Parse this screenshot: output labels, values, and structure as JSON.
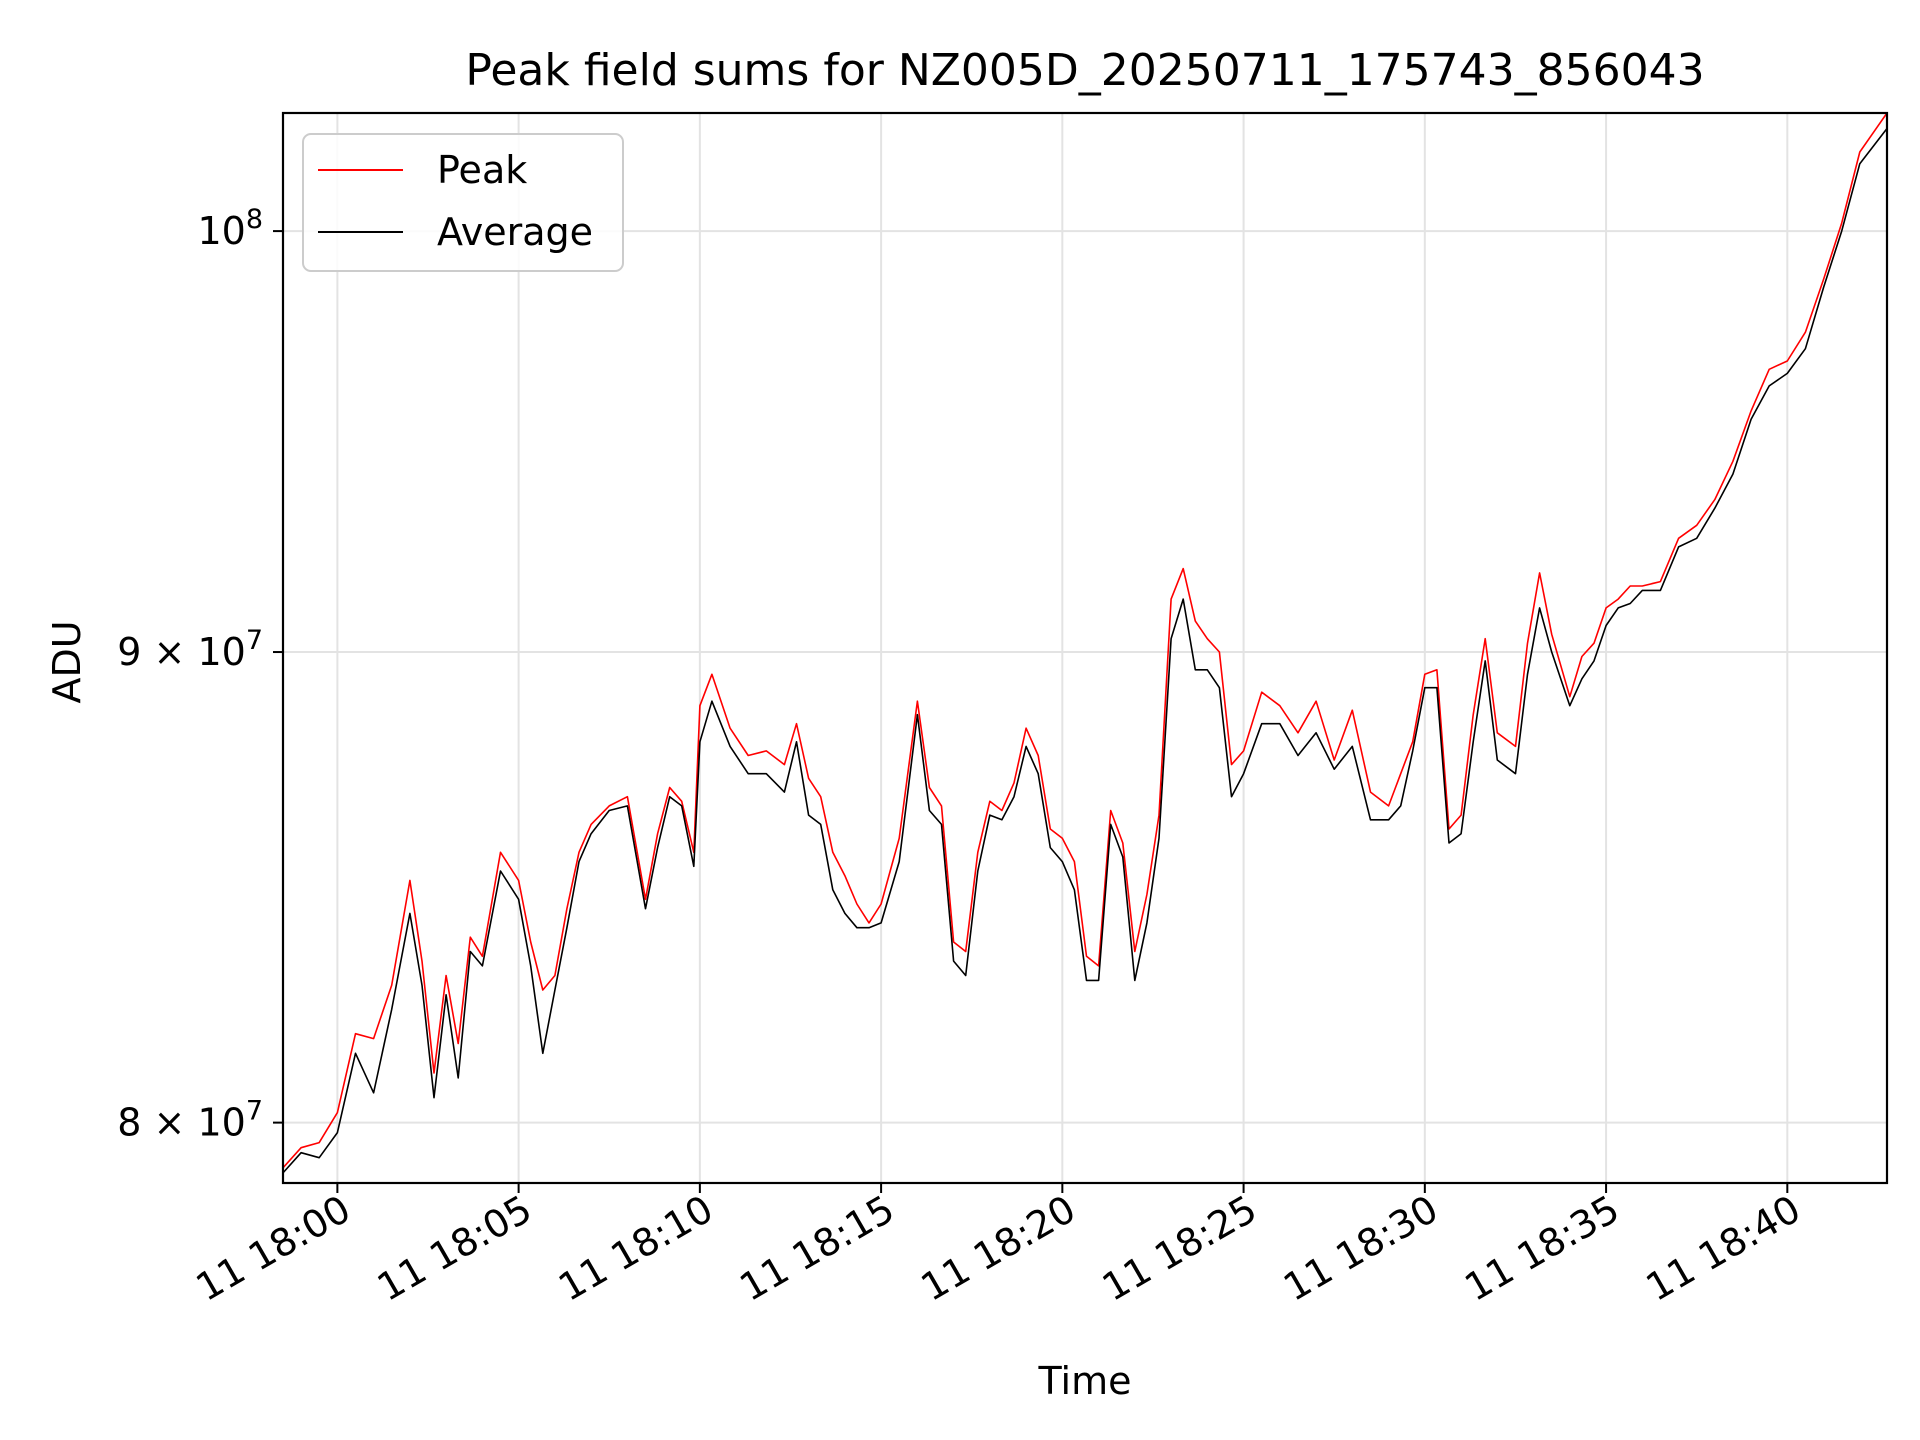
{
  "chart_data": {
    "type": "line",
    "title": "Peak field sums for NZ005D_20250711_175743_856043",
    "xlabel": "Time",
    "ylabel": "ADU",
    "y_scale": "log",
    "grid": true,
    "legend_position": "upper-left",
    "xlim": [
      "2025-07-11T17:58:30",
      "2025-07-11T18:42:45"
    ],
    "ylim": [
      78800000,
      103000000
    ],
    "x_ticks": [
      "11 18:00",
      "11 18:05",
      "11 18:10",
      "11 18:15",
      "11 18:20",
      "11 18:25",
      "11 18:30",
      "11 18:35",
      "11 18:40"
    ],
    "x_tick_values": [
      "2025-07-11T18:00:00",
      "2025-07-11T18:05:00",
      "2025-07-11T18:10:00",
      "2025-07-11T18:15:00",
      "2025-07-11T18:20:00",
      "2025-07-11T18:25:00",
      "2025-07-11T18:30:00",
      "2025-07-11T18:35:00",
      "2025-07-11T18:40:00"
    ],
    "y_ticks": [
      {
        "value": 80000000,
        "mantissa": "8",
        "base": "10",
        "exp": "7"
      },
      {
        "value": 90000000,
        "mantissa": "9",
        "base": "10",
        "exp": "7"
      },
      {
        "value": 100000000,
        "mantissa": "",
        "base": "10",
        "exp": "8"
      }
    ],
    "x": [
      "2025-07-11T17:58:30",
      "2025-07-11T17:59:00",
      "2025-07-11T17:59:30",
      "2025-07-11T18:00:00",
      "2025-07-11T18:00:30",
      "2025-07-11T18:01:00",
      "2025-07-11T18:01:30",
      "2025-07-11T18:02:00",
      "2025-07-11T18:02:20",
      "2025-07-11T18:02:40",
      "2025-07-11T18:03:00",
      "2025-07-11T18:03:20",
      "2025-07-11T18:03:40",
      "2025-07-11T18:04:00",
      "2025-07-11T18:04:30",
      "2025-07-11T18:05:00",
      "2025-07-11T18:05:20",
      "2025-07-11T18:05:40",
      "2025-07-11T18:06:00",
      "2025-07-11T18:06:20",
      "2025-07-11T18:06:40",
      "2025-07-11T18:07:00",
      "2025-07-11T18:07:30",
      "2025-07-11T18:08:00",
      "2025-07-11T18:08:30",
      "2025-07-11T18:08:50",
      "2025-07-11T18:09:10",
      "2025-07-11T18:09:30",
      "2025-07-11T18:09:50",
      "2025-07-11T18:10:00",
      "2025-07-11T18:10:20",
      "2025-07-11T18:10:50",
      "2025-07-11T18:11:20",
      "2025-07-11T18:11:50",
      "2025-07-11T18:12:20",
      "2025-07-11T18:12:40",
      "2025-07-11T18:13:00",
      "2025-07-11T18:13:20",
      "2025-07-11T18:13:40",
      "2025-07-11T18:14:00",
      "2025-07-11T18:14:20",
      "2025-07-11T18:14:40",
      "2025-07-11T18:15:00",
      "2025-07-11T18:15:30",
      "2025-07-11T18:16:00",
      "2025-07-11T18:16:20",
      "2025-07-11T18:16:40",
      "2025-07-11T18:17:00",
      "2025-07-11T18:17:20",
      "2025-07-11T18:17:40",
      "2025-07-11T18:18:00",
      "2025-07-11T18:18:20",
      "2025-07-11T18:18:40",
      "2025-07-11T18:19:00",
      "2025-07-11T18:19:20",
      "2025-07-11T18:19:40",
      "2025-07-11T18:20:00",
      "2025-07-11T18:20:20",
      "2025-07-11T18:20:40",
      "2025-07-11T18:21:00",
      "2025-07-11T18:21:20",
      "2025-07-11T18:21:40",
      "2025-07-11T18:22:00",
      "2025-07-11T18:22:20",
      "2025-07-11T18:22:40",
      "2025-07-11T18:23:00",
      "2025-07-11T18:23:20",
      "2025-07-11T18:23:40",
      "2025-07-11T18:24:00",
      "2025-07-11T18:24:20",
      "2025-07-11T18:24:40",
      "2025-07-11T18:25:00",
      "2025-07-11T18:25:30",
      "2025-07-11T18:26:00",
      "2025-07-11T18:26:30",
      "2025-07-11T18:27:00",
      "2025-07-11T18:27:30",
      "2025-07-11T18:28:00",
      "2025-07-11T18:28:30",
      "2025-07-11T18:29:00",
      "2025-07-11T18:29:20",
      "2025-07-11T18:29:40",
      "2025-07-11T18:30:00",
      "2025-07-11T18:30:20",
      "2025-07-11T18:30:40",
      "2025-07-11T18:31:00",
      "2025-07-11T18:31:20",
      "2025-07-11T18:31:40",
      "2025-07-11T18:32:00",
      "2025-07-11T18:32:30",
      "2025-07-11T18:32:50",
      "2025-07-11T18:33:10",
      "2025-07-11T18:33:30",
      "2025-07-11T18:34:00",
      "2025-07-11T18:34:20",
      "2025-07-11T18:34:40",
      "2025-07-11T18:35:00",
      "2025-07-11T18:35:20",
      "2025-07-11T18:35:40",
      "2025-07-11T18:36:00",
      "2025-07-11T18:36:30",
      "2025-07-11T18:37:00",
      "2025-07-11T18:37:30",
      "2025-07-11T18:38:00",
      "2025-07-11T18:38:30",
      "2025-07-11T18:39:00",
      "2025-07-11T18:39:30",
      "2025-07-11T18:40:00",
      "2025-07-11T18:40:30",
      "2025-07-11T18:41:00",
      "2025-07-11T18:41:30",
      "2025-07-11T18:42:00",
      "2025-07-11T18:42:45"
    ],
    "series": [
      {
        "name": "Peak",
        "color": "#ff0000",
        "values": [
          79100000,
          79500000,
          79600000,
          80200000,
          81800000,
          81700000,
          82800000,
          85000000,
          83300000,
          81000000,
          83000000,
          81600000,
          83800000,
          83400000,
          85600000,
          85000000,
          83700000,
          82700000,
          83000000,
          84400000,
          85600000,
          86200000,
          86600000,
          86800000,
          84600000,
          86000000,
          87000000,
          86700000,
          85600000,
          88800000,
          89500000,
          88300000,
          87700000,
          87800000,
          87500000,
          88400000,
          87200000,
          86800000,
          85600000,
          85100000,
          84500000,
          84100000,
          84500000,
          85900000,
          88900000,
          87000000,
          86600000,
          83700000,
          83500000,
          85600000,
          86700000,
          86500000,
          87100000,
          88300000,
          87700000,
          86100000,
          85900000,
          85400000,
          83400000,
          83200000,
          86500000,
          85800000,
          83500000,
          84700000,
          86400000,
          91200000,
          91900000,
          90700000,
          90300000,
          90000000,
          87500000,
          87800000,
          89100000,
          88800000,
          88200000,
          88900000,
          87600000,
          88700000,
          86900000,
          86600000,
          87300000,
          88000000,
          89500000,
          89600000,
          86100000,
          86400000,
          88600000,
          90300000,
          88200000,
          87900000,
          90200000,
          91800000,
          90400000,
          89000000,
          89900000,
          90200000,
          91000000,
          91200000,
          91500000,
          91500000,
          91600000,
          92600000,
          92900000,
          93500000,
          94400000,
          95600000,
          96600000,
          96800000,
          97500000,
          98800000,
          100200000,
          102000000,
          103000000
        ]
      },
      {
        "name": "Average",
        "color": "#000000",
        "values": [
          79000000,
          79400000,
          79300000,
          79800000,
          81400000,
          80600000,
          82300000,
          84300000,
          82800000,
          80500000,
          82600000,
          80900000,
          83500000,
          83200000,
          85200000,
          84600000,
          83200000,
          81400000,
          82700000,
          84000000,
          85400000,
          86000000,
          86500000,
          86600000,
          84400000,
          85700000,
          86800000,
          86600000,
          85300000,
          88000000,
          88900000,
          87900000,
          87300000,
          87300000,
          86900000,
          88000000,
          86400000,
          86200000,
          84800000,
          84300000,
          84000000,
          84000000,
          84100000,
          85400000,
          88600000,
          86500000,
          86200000,
          83300000,
          83000000,
          85200000,
          86400000,
          86300000,
          86800000,
          87900000,
          87300000,
          85700000,
          85400000,
          84800000,
          82900000,
          82900000,
          86200000,
          85500000,
          82900000,
          84100000,
          85900000,
          90300000,
          91200000,
          89600000,
          89600000,
          89200000,
          86800000,
          87300000,
          88400000,
          88400000,
          87700000,
          88200000,
          87400000,
          87900000,
          86300000,
          86300000,
          86600000,
          87800000,
          89200000,
          89200000,
          85800000,
          86000000,
          88000000,
          89800000,
          87600000,
          87300000,
          89500000,
          91000000,
          90000000,
          88800000,
          89400000,
          89800000,
          90600000,
          91000000,
          91100000,
          91400000,
          91400000,
          92400000,
          92600000,
          93300000,
          94100000,
          95400000,
          96200000,
          96500000,
          97100000,
          98600000,
          100000000,
          101700000,
          102600000
        ]
      }
    ]
  }
}
